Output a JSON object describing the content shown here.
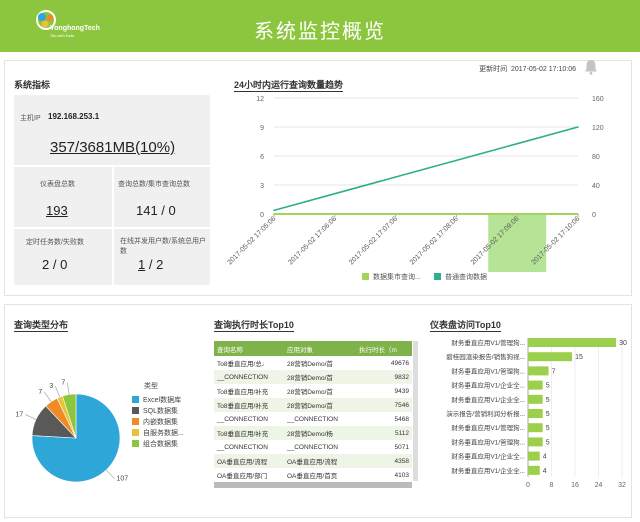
{
  "header": {
    "brand": "YonghongTech",
    "tagline": "Tao with Data",
    "title": "系统监控概览"
  },
  "update": {
    "label": "更新时间",
    "time": "2017-05-02 17:10:06"
  },
  "metrics": {
    "title": "系统指标",
    "host_label": "主机IP",
    "host_ip": "192.168.253.1",
    "memory": "357/3681MB(10%)",
    "dashboard_label": "仪表盘总数",
    "dashboard_value": "193",
    "query_label": "查询总数/集市查询总数",
    "query_value": "141  /  0",
    "task_label": "定时任务数/失败数",
    "task_value": "2  /  0",
    "users_label": "在线并发用户数/系统总用户数",
    "users_value_a": "1",
    "users_value_sep": " / ",
    "users_value_b": "2"
  },
  "trend": {
    "title": "24小时内运行查询数量趋势",
    "chart_data": {
      "type": "line",
      "x": [
        "2017-05-02 17:05:06",
        "2017-05-02 17:06:06",
        "2017-05-02 17:07:06",
        "2017-05-02 17:08:06",
        "2017-05-02 17:09:06",
        "2017-05-02 17:10:06"
      ],
      "series": [
        {
          "name": "数据集市查询...",
          "axis": "left",
          "values": [
            0,
            0,
            0,
            0,
            0,
            0
          ],
          "color": "#a4d45a"
        },
        {
          "name": "普通查询数据",
          "axis": "right",
          "values": [
            5,
            28,
            51,
            74,
            97,
            120
          ],
          "color": "#2fae8e"
        }
      ],
      "yleft": {
        "min": 0,
        "max": 12,
        "ticks": [
          0,
          3,
          6,
          9,
          12
        ]
      },
      "yright": {
        "min": 0,
        "max": 160,
        "ticks": [
          0,
          40,
          80,
          120,
          160
        ]
      },
      "highlight_index": 4,
      "highlight_color": "#b6e497"
    }
  },
  "querytype": {
    "title": "查询类型分布",
    "chart_data": {
      "type": "pie",
      "legend_title": "类型",
      "slices": [
        {
          "label": "Excel数据库",
          "value": 107,
          "color": "#2ea7d8"
        },
        {
          "label": "SQL数据集",
          "value": 17,
          "color": "#595959"
        },
        {
          "label": "内嵌数据集",
          "value": 7,
          "color": "#f08a24"
        },
        {
          "label": "自服务数据...",
          "value": 3,
          "color": "#e8c23a"
        },
        {
          "label": "组合数据集",
          "value": 7,
          "color": "#8cc63f"
        }
      ]
    }
  },
  "exectop": {
    "title": "查询执行时长Top10",
    "headers": [
      "查询名称",
      "应用对象",
      "执行时长（m"
    ],
    "rows": [
      [
        "To8垂直应用/总♩",
        "28营销Demo/首",
        "49676"
      ],
      [
        "__CONNECTION",
        "28营销Demo/首",
        "9832"
      ],
      [
        "To8垂直应用/补充",
        "28营销Demo/首",
        "9439"
      ],
      [
        "To8垂直应用/补充",
        "28营销Demo/首",
        "7546"
      ],
      [
        "__CONNECTION",
        "__CONNECTION",
        "5468"
      ],
      [
        "To8垂直应用/补充",
        "28营销Demo/杨",
        "5112"
      ],
      [
        "__CONNECTION",
        "__CONNECTION",
        "5071"
      ],
      [
        "OA垂直应用/流程",
        "OA垂直应用/流程",
        "4358"
      ],
      [
        "OA垂直应用/部门",
        "OA垂直应用/首页",
        "4103"
      ]
    ]
  },
  "dashtop": {
    "title": "仪表盘访问Top10",
    "chart_data": {
      "type": "bar",
      "categories": [
        "财务垂直应用V1/管理狗...",
        "碧桂园渲染报告/销售狗视...",
        "财务垂直应用V1/管理狗...",
        "财务垂直应用V1/企业全...",
        "财务垂直应用V1/企业全...",
        "演示报告/营销利润分析报...",
        "财务垂直应用V1/管理狗...",
        "财务垂直应用V1/管理狗...",
        "财务垂直应用V1/企业全...",
        "财务垂直应用V1/企业全..."
      ],
      "values": [
        30,
        15,
        7,
        5,
        5,
        5,
        5,
        5,
        4,
        4
      ],
      "xticks": [
        0,
        8,
        16,
        24,
        32
      ],
      "xmax": 32,
      "color": "#9ccf4b"
    }
  }
}
